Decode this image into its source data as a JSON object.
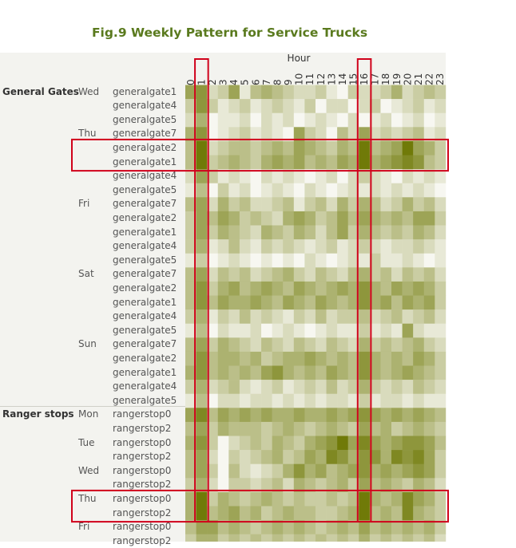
{
  "chart_data": {
    "type": "heatmap",
    "title": "Fig.9 Weekly Pattern for Service Trucks",
    "x_title": "Hour",
    "x_labels": [
      "0",
      "1",
      "2",
      "3",
      "4",
      "5",
      "6",
      "7",
      "8",
      "9",
      "10",
      "11",
      "12",
      "13",
      "14",
      "15",
      "16",
      "17",
      "18",
      "19",
      "20",
      "21",
      "22",
      "23"
    ],
    "rows": [
      {
        "group": "General Gates",
        "day": "Wed",
        "name": "generalgate1"
      },
      {
        "group": "",
        "day": "",
        "name": "generalgate4"
      },
      {
        "group": "",
        "day": "",
        "name": "generalgate5"
      },
      {
        "group": "",
        "day": "Thu",
        "name": "generalgate7"
      },
      {
        "group": "",
        "day": "",
        "name": "generalgate2"
      },
      {
        "group": "",
        "day": "",
        "name": "generalgate1"
      },
      {
        "group": "",
        "day": "",
        "name": "generalgate4"
      },
      {
        "group": "",
        "day": "",
        "name": "generalgate5"
      },
      {
        "group": "",
        "day": "Fri",
        "name": "generalgate7"
      },
      {
        "group": "",
        "day": "",
        "name": "generalgate2"
      },
      {
        "group": "",
        "day": "",
        "name": "generalgate1"
      },
      {
        "group": "",
        "day": "",
        "name": "generalgate4"
      },
      {
        "group": "",
        "day": "",
        "name": "generalgate5"
      },
      {
        "group": "",
        "day": "Sat",
        "name": "generalgate7"
      },
      {
        "group": "",
        "day": "",
        "name": "generalgate2"
      },
      {
        "group": "",
        "day": "",
        "name": "generalgate1"
      },
      {
        "group": "",
        "day": "",
        "name": "generalgate4"
      },
      {
        "group": "",
        "day": "",
        "name": "generalgate5"
      },
      {
        "group": "",
        "day": "Sun",
        "name": "generalgate7"
      },
      {
        "group": "",
        "day": "",
        "name": "generalgate2"
      },
      {
        "group": "",
        "day": "",
        "name": "generalgate1"
      },
      {
        "group": "",
        "day": "",
        "name": "generalgate4"
      },
      {
        "group": "",
        "day": "",
        "name": "generalgate5"
      },
      {
        "group": "Ranger stops",
        "day": "Mon",
        "name": "rangerstop0"
      },
      {
        "group": "",
        "day": "",
        "name": "rangerstop2"
      },
      {
        "group": "",
        "day": "Tue",
        "name": "rangerstop0"
      },
      {
        "group": "",
        "day": "",
        "name": "rangerstop2"
      },
      {
        "group": "",
        "day": "Wed",
        "name": "rangerstop0"
      },
      {
        "group": "",
        "day": "",
        "name": "rangerstop2"
      },
      {
        "group": "",
        "day": "Thu",
        "name": "rangerstop0"
      },
      {
        "group": "",
        "day": "",
        "name": "rangerstop2"
      },
      {
        "group": "",
        "day": "Fri",
        "name": "rangerstop0"
      },
      {
        "group": "",
        "day": "",
        "name": "rangerstop2"
      }
    ],
    "values": [
      [
        6,
        7,
        2,
        3,
        6,
        1,
        4,
        5,
        4,
        3,
        2,
        2,
        3,
        1,
        0,
        3,
        2,
        2,
        3,
        5,
        2,
        3,
        4,
        3
      ],
      [
        3,
        7,
        3,
        1,
        2,
        3,
        1,
        2,
        3,
        2,
        1,
        3,
        0,
        2,
        2,
        0,
        2,
        3,
        0,
        1,
        2,
        3,
        1,
        2
      ],
      [
        2,
        5,
        0,
        1,
        1,
        2,
        0,
        2,
        1,
        2,
        0,
        1,
        2,
        1,
        0,
        2,
        0,
        1,
        2,
        0,
        1,
        2,
        0,
        1
      ],
      [
        5,
        7,
        0,
        1,
        2,
        3,
        1,
        2,
        1,
        0,
        6,
        3,
        2,
        0,
        4,
        2,
        6,
        2,
        3,
        2,
        3,
        4,
        1,
        2
      ],
      [
        4,
        9,
        2,
        3,
        4,
        4,
        3,
        4,
        5,
        4,
        6,
        5,
        4,
        3,
        5,
        4,
        9,
        4,
        5,
        6,
        9,
        6,
        5,
        3
      ],
      [
        4,
        9,
        3,
        4,
        5,
        4,
        3,
        5,
        6,
        5,
        6,
        4,
        5,
        4,
        6,
        5,
        9,
        5,
        6,
        7,
        8,
        7,
        4,
        3
      ],
      [
        2,
        6,
        3,
        1,
        2,
        1,
        0,
        2,
        1,
        2,
        1,
        0,
        1,
        2,
        0,
        2,
        3,
        2,
        1,
        0,
        2,
        1,
        2,
        1
      ],
      [
        1,
        4,
        0,
        3,
        1,
        2,
        0,
        1,
        2,
        1,
        0,
        2,
        1,
        0,
        1,
        2,
        1,
        2,
        1,
        2,
        1,
        2,
        1,
        0
      ],
      [
        4,
        6,
        2,
        5,
        3,
        4,
        2,
        2,
        3,
        4,
        1,
        3,
        4,
        2,
        5,
        3,
        5,
        4,
        2,
        3,
        5,
        3,
        4,
        2
      ],
      [
        3,
        6,
        4,
        6,
        5,
        3,
        4,
        3,
        2,
        5,
        6,
        5,
        3,
        4,
        6,
        4,
        6,
        5,
        4,
        5,
        4,
        6,
        6,
        3
      ],
      [
        3,
        6,
        3,
        5,
        4,
        3,
        2,
        5,
        4,
        3,
        5,
        4,
        2,
        4,
        6,
        3,
        5,
        4,
        3,
        4,
        3,
        5,
        4,
        2
      ],
      [
        3,
        5,
        1,
        2,
        4,
        2,
        1,
        3,
        2,
        3,
        2,
        1,
        2,
        3,
        1,
        2,
        3,
        2,
        1,
        2,
        2,
        3,
        2,
        1
      ],
      [
        1,
        3,
        0,
        1,
        2,
        1,
        0,
        1,
        0,
        1,
        0,
        2,
        1,
        0,
        1,
        2,
        1,
        3,
        1,
        1,
        2,
        1,
        0,
        1
      ],
      [
        4,
        6,
        2,
        4,
        3,
        4,
        2,
        3,
        4,
        5,
        3,
        2,
        4,
        3,
        2,
        4,
        5,
        3,
        4,
        2,
        4,
        3,
        4,
        2
      ],
      [
        4,
        7,
        3,
        5,
        6,
        4,
        5,
        6,
        5,
        4,
        6,
        5,
        4,
        5,
        6,
        5,
        7,
        5,
        4,
        6,
        5,
        6,
        5,
        3
      ],
      [
        4,
        7,
        4,
        6,
        5,
        5,
        6,
        5,
        4,
        6,
        5,
        4,
        6,
        5,
        4,
        5,
        7,
        5,
        6,
        4,
        6,
        5,
        6,
        3
      ],
      [
        3,
        5,
        1,
        3,
        2,
        4,
        2,
        3,
        2,
        1,
        3,
        2,
        4,
        2,
        3,
        3,
        4,
        2,
        3,
        4,
        2,
        3,
        4,
        2
      ],
      [
        1,
        4,
        0,
        2,
        1,
        1,
        2,
        0,
        1,
        2,
        1,
        0,
        1,
        2,
        1,
        1,
        3,
        1,
        2,
        1,
        6,
        2,
        1,
        1
      ],
      [
        4,
        6,
        3,
        5,
        4,
        3,
        2,
        4,
        3,
        2,
        4,
        3,
        2,
        4,
        3,
        2,
        5,
        3,
        4,
        3,
        4,
        5,
        3,
        2
      ],
      [
        4,
        7,
        4,
        5,
        5,
        4,
        5,
        3,
        4,
        5,
        5,
        6,
        5,
        4,
        5,
        4,
        7,
        5,
        4,
        5,
        4,
        6,
        5,
        3
      ],
      [
        5,
        7,
        4,
        5,
        4,
        5,
        4,
        6,
        7,
        5,
        4,
        5,
        4,
        6,
        5,
        4,
        7,
        5,
        4,
        5,
        6,
        5,
        4,
        3
      ],
      [
        3,
        5,
        2,
        3,
        4,
        2,
        1,
        2,
        3,
        1,
        2,
        3,
        2,
        4,
        2,
        3,
        5,
        3,
        2,
        3,
        2,
        4,
        3,
        2
      ],
      [
        1,
        4,
        0,
        2,
        2,
        1,
        2,
        2,
        1,
        2,
        1,
        2,
        1,
        2,
        2,
        1,
        3,
        1,
        2,
        2,
        1,
        2,
        1,
        1
      ],
      [
        6,
        8,
        4,
        6,
        5,
        6,
        5,
        6,
        5,
        5,
        6,
        5,
        5,
        6,
        5,
        6,
        7,
        6,
        5,
        6,
        5,
        6,
        5,
        4
      ],
      [
        4,
        6,
        3,
        5,
        4,
        4,
        4,
        3,
        4,
        5,
        4,
        3,
        4,
        5,
        4,
        3,
        6,
        4,
        5,
        3,
        4,
        5,
        4,
        3
      ],
      [
        5,
        7,
        3,
        0,
        2,
        3,
        4,
        3,
        5,
        4,
        3,
        5,
        6,
        7,
        9,
        6,
        8,
        6,
        5,
        6,
        7,
        7,
        6,
        4
      ],
      [
        4,
        6,
        2,
        0,
        3,
        2,
        3,
        4,
        5,
        3,
        4,
        6,
        5,
        8,
        7,
        5,
        7,
        7,
        5,
        8,
        7,
        8,
        6,
        3
      ],
      [
        4,
        6,
        3,
        0,
        4,
        2,
        1,
        2,
        3,
        5,
        7,
        5,
        6,
        4,
        5,
        6,
        7,
        5,
        6,
        5,
        6,
        7,
        6,
        3
      ],
      [
        3,
        5,
        2,
        0,
        3,
        3,
        2,
        3,
        4,
        2,
        5,
        4,
        3,
        4,
        5,
        3,
        6,
        4,
        5,
        4,
        3,
        5,
        4,
        2
      ],
      [
        5,
        9,
        3,
        5,
        4,
        3,
        4,
        5,
        4,
        3,
        4,
        3,
        3,
        4,
        3,
        4,
        9,
        5,
        4,
        5,
        8,
        6,
        5,
        3
      ],
      [
        5,
        9,
        4,
        5,
        6,
        4,
        5,
        3,
        4,
        5,
        4,
        4,
        3,
        3,
        4,
        5,
        9,
        4,
        5,
        4,
        8,
        5,
        4,
        3
      ],
      [
        4,
        6,
        6,
        4,
        5,
        4,
        3,
        4,
        5,
        4,
        5,
        4,
        3,
        4,
        5,
        4,
        6,
        4,
        5,
        4,
        5,
        4,
        5,
        3
      ],
      [
        3,
        5,
        5,
        3,
        4,
        3,
        4,
        3,
        4,
        3,
        4,
        3,
        4,
        3,
        4,
        3,
        5,
        3,
        4,
        3,
        4,
        3,
        4,
        2
      ]
    ],
    "value_scale": [
      0,
      9
    ],
    "color_low": "#f7f7f1",
    "color_high": "#707a08",
    "highlight_color": "#d0021b",
    "highlight_columns": [
      "1",
      "16"
    ],
    "highlight_rows": [
      [
        4,
        5
      ],
      [
        29,
        30
      ]
    ]
  }
}
